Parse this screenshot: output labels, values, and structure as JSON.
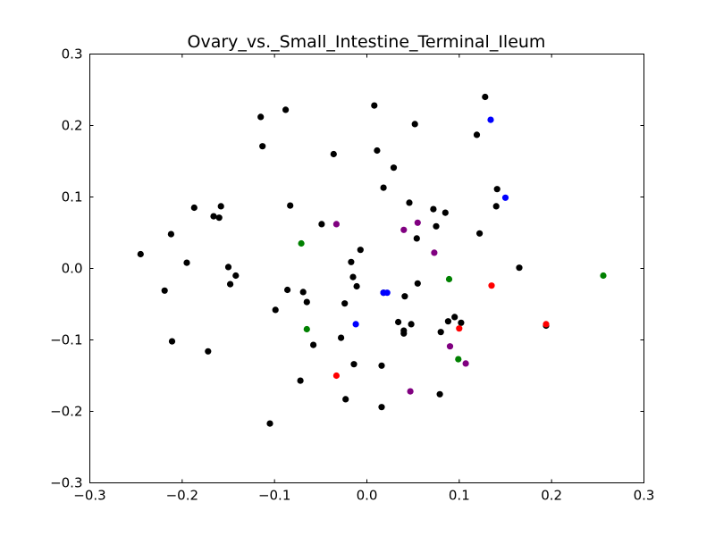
{
  "chart_data": {
    "type": "scatter",
    "title": "Ovary_vs._Small_Intestine_Terminal_Ileum",
    "xlabel": "",
    "ylabel": "",
    "xlim": [
      -0.3,
      0.3
    ],
    "ylim": [
      -0.3,
      0.3
    ],
    "x_ticks": [
      -0.3,
      -0.2,
      -0.1,
      0.0,
      0.1,
      0.2,
      0.3
    ],
    "y_ticks": [
      -0.3,
      -0.2,
      -0.1,
      0.0,
      0.1,
      0.2,
      0.3
    ],
    "x_tick_labels": [
      "−0.3",
      "−0.2",
      "−0.1",
      "0.0",
      "0.1",
      "0.2",
      "0.3"
    ],
    "y_tick_labels": [
      "−0.3",
      "−0.2",
      "−0.1",
      "0.0",
      "0.1",
      "0.2",
      "0.3"
    ],
    "grid": false,
    "series": [
      {
        "color": "#000000",
        "points": [
          [
            -0.245,
            0.02
          ],
          [
            -0.219,
            -0.031
          ],
          [
            -0.212,
            0.048
          ],
          [
            -0.211,
            -0.102
          ],
          [
            -0.195,
            0.008
          ],
          [
            -0.187,
            0.085
          ],
          [
            -0.172,
            -0.116
          ],
          [
            -0.166,
            0.073
          ],
          [
            -0.16,
            0.071
          ],
          [
            -0.158,
            0.087
          ],
          [
            -0.15,
            0.002
          ],
          [
            -0.148,
            -0.022
          ],
          [
            -0.142,
            -0.01
          ],
          [
            -0.115,
            0.212
          ],
          [
            -0.113,
            0.171
          ],
          [
            -0.105,
            -0.217
          ],
          [
            -0.099,
            -0.058
          ],
          [
            -0.088,
            0.222
          ],
          [
            -0.086,
            -0.03
          ],
          [
            -0.083,
            0.088
          ],
          [
            -0.072,
            -0.157
          ],
          [
            -0.069,
            -0.033
          ],
          [
            -0.065,
            -0.047
          ],
          [
            -0.058,
            -0.107
          ],
          [
            -0.049,
            0.062
          ],
          [
            -0.036,
            0.16
          ],
          [
            -0.028,
            -0.097
          ],
          [
            -0.024,
            -0.049
          ],
          [
            -0.023,
            -0.183
          ],
          [
            -0.017,
            0.009
          ],
          [
            -0.015,
            -0.012
          ],
          [
            -0.014,
            -0.134
          ],
          [
            -0.011,
            -0.025
          ],
          [
            -0.007,
            0.026
          ],
          [
            0.008,
            0.228
          ],
          [
            0.011,
            0.165
          ],
          [
            0.016,
            -0.136
          ],
          [
            0.016,
            -0.194
          ],
          [
            0.018,
            0.113
          ],
          [
            0.018,
            -0.034
          ],
          [
            0.029,
            0.141
          ],
          [
            0.034,
            -0.075
          ],
          [
            0.04,
            -0.087
          ],
          [
            0.04,
            -0.091
          ],
          [
            0.041,
            -0.039
          ],
          [
            0.046,
            0.092
          ],
          [
            0.048,
            -0.078
          ],
          [
            0.052,
            0.202
          ],
          [
            0.054,
            0.042
          ],
          [
            0.055,
            -0.021
          ],
          [
            0.072,
            0.083
          ],
          [
            0.075,
            0.059
          ],
          [
            0.079,
            -0.176
          ],
          [
            0.08,
            -0.089
          ],
          [
            0.085,
            0.078
          ],
          [
            0.088,
            -0.074
          ],
          [
            0.095,
            -0.068
          ],
          [
            0.102,
            -0.076
          ],
          [
            0.119,
            0.187
          ],
          [
            0.122,
            0.049
          ],
          [
            0.128,
            0.24
          ],
          [
            0.14,
            0.087
          ],
          [
            0.141,
            0.111
          ],
          [
            0.165,
            0.001
          ],
          [
            0.194,
            -0.08
          ]
        ]
      },
      {
        "color": "#0000ff",
        "points": [
          [
            -0.012,
            -0.078
          ],
          [
            0.018,
            -0.034
          ],
          [
            0.022,
            -0.034
          ],
          [
            0.134,
            0.208
          ],
          [
            0.15,
            0.099
          ]
        ]
      },
      {
        "color": "#ff0000",
        "points": [
          [
            -0.033,
            -0.15
          ],
          [
            0.1,
            -0.084
          ],
          [
            0.135,
            -0.024
          ],
          [
            0.194,
            -0.078
          ]
        ]
      },
      {
        "color": "#008000",
        "points": [
          [
            -0.071,
            0.035
          ],
          [
            -0.065,
            -0.085
          ],
          [
            0.089,
            -0.015
          ],
          [
            0.099,
            -0.127
          ],
          [
            0.256,
            -0.01
          ]
        ]
      },
      {
        "color": "#800080",
        "points": [
          [
            -0.033,
            0.062
          ],
          [
            0.04,
            0.054
          ],
          [
            0.047,
            -0.172
          ],
          [
            0.055,
            0.064
          ],
          [
            0.073,
            0.022
          ],
          [
            0.09,
            -0.109
          ],
          [
            0.107,
            -0.133
          ]
        ]
      }
    ]
  }
}
